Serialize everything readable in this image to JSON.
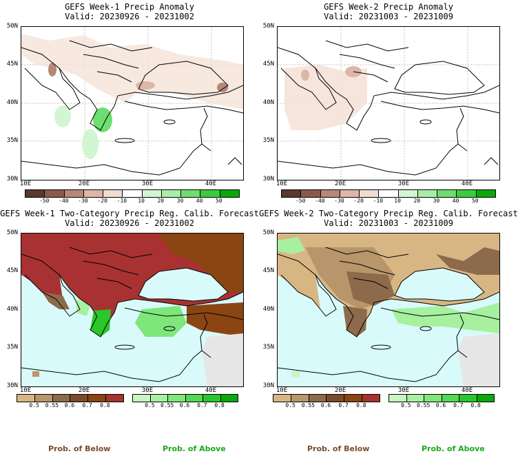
{
  "panels": [
    {
      "title": "GEFS Week-1 Precip Anomaly",
      "valid": "Valid: 20230926 - 20231002"
    },
    {
      "title": "GEFS Week-2 Precip Anomaly",
      "valid": "Valid: 20231003 - 20231009"
    },
    {
      "title": "GEFS Week-1 Two-Category Precip Reg. Calib. Forecast",
      "valid": "Valid: 20230926 - 20231002"
    },
    {
      "title": "GEFS Week-2 Two-Category Precip Reg. Calib. Forecast",
      "valid": "Valid: 20231003 - 20231009"
    }
  ],
  "lat_labels": [
    "50N",
    "45N",
    "40N",
    "35N",
    "30N"
  ],
  "lon_labels": [
    "10E",
    "20E",
    "30E",
    "40E"
  ],
  "anomaly_scale": {
    "labels": [
      "-50",
      "-40",
      "-30",
      "-20",
      "-10",
      "10",
      "20",
      "30",
      "40",
      "50"
    ],
    "colors": [
      "#5a3a2c",
      "#8b5a4a",
      "#b58878",
      "#dcb6a6",
      "#f0dcd2",
      "#ffffff",
      "#d2f5d2",
      "#a6eea6",
      "#6ede6e",
      "#3ccc3c",
      "#0aa80a"
    ]
  },
  "below_scale": {
    "labels": [
      "0.5",
      "0.55",
      "0.6",
      "0.7",
      "0.8"
    ],
    "colors": [
      "#d8b684",
      "#b8956a",
      "#8e6a4c",
      "#7a4a2c",
      "#8b4513",
      "#a83232"
    ]
  },
  "above_scale": {
    "labels": [
      "0.5",
      "0.55",
      "0.6",
      "0.7",
      "0.8"
    ],
    "colors": [
      "#c8f5c0",
      "#a6f0a0",
      "#7ee67a",
      "#52d852",
      "#2ac62a",
      "#0aa80a"
    ]
  },
  "bottom_labels": {
    "below": "Prob. of Below",
    "above": "Prob. of Above"
  },
  "colors": {
    "below_text": "#7a4a2c",
    "above_text": "#1aa81a",
    "sea": "#d8fafa",
    "land_nodata": "#e6e6e6"
  }
}
